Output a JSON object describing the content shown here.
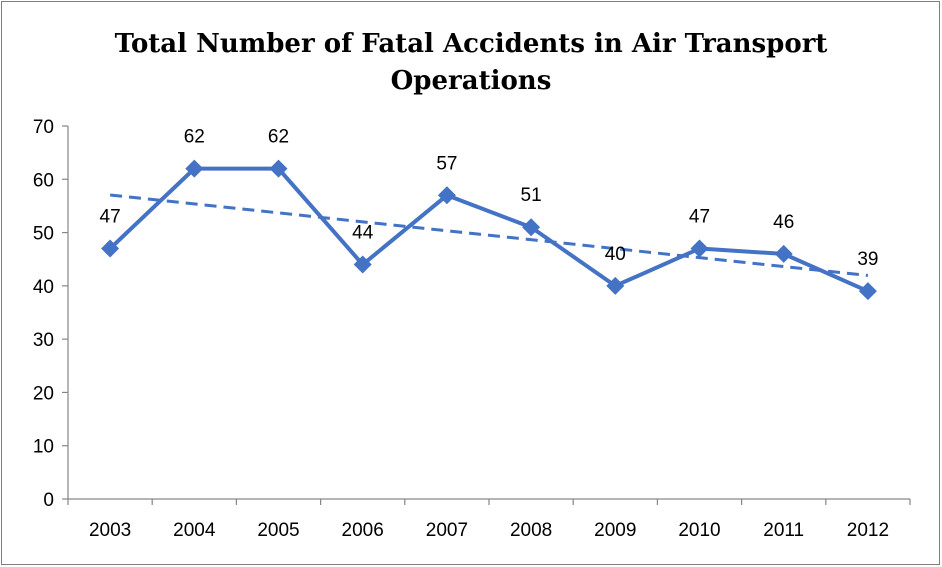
{
  "chart_data": {
    "type": "line",
    "title_lines": [
      "Total Number of Fatal Accidents in Air Transport",
      "Operations"
    ],
    "categories": [
      "2003",
      "2004",
      "2005",
      "2006",
      "2007",
      "2008",
      "2009",
      "2010",
      "2011",
      "2012"
    ],
    "values": [
      47,
      62,
      62,
      44,
      57,
      51,
      40,
      47,
      46,
      39
    ],
    "data_labels": [
      "47",
      "62",
      "62",
      "44",
      "57",
      "51",
      "40",
      "47",
      "46",
      "39"
    ],
    "trendline": {
      "type": "linear",
      "style": "dashed",
      "visible": true
    },
    "ylim": [
      0,
      70
    ],
    "yticks": [
      0,
      10,
      20,
      30,
      40,
      50,
      60,
      70
    ],
    "ytick_labels": [
      "0",
      "10",
      "20",
      "30",
      "40",
      "50",
      "60",
      "70"
    ],
    "marker": "diamond",
    "legend": "none",
    "grid": false,
    "colors": {
      "series": "#4472c4",
      "axis": "#868686"
    }
  }
}
